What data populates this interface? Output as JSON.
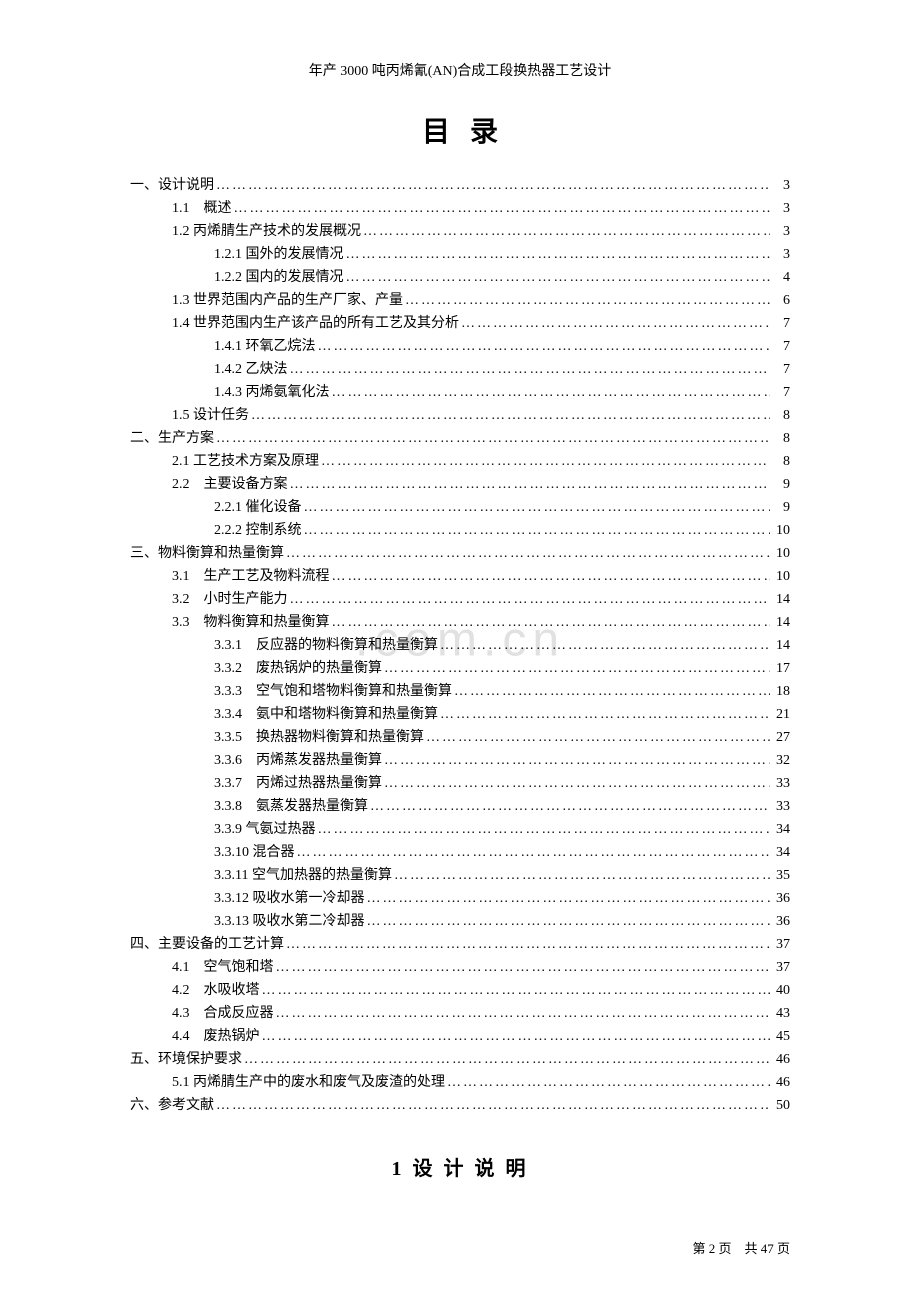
{
  "docHeader": "年产 3000 吨丙烯氰(AN)合成工段换热器工艺设计",
  "mainTitle": "目录",
  "watermark": ".com.cn",
  "sectionTitle": "1 设 计 说 明",
  "footer": {
    "currentPageLabel": "第",
    "currentPage": "2",
    "pageUnit": "页",
    "totalLabel": "共",
    "totalPages": "47",
    "totalUnit": "页"
  },
  "toc": [
    {
      "indent": 0,
      "label": "一、设计说明",
      "page": "3"
    },
    {
      "indent": 1,
      "label": "1.1　概述",
      "page": "3"
    },
    {
      "indent": 1,
      "label": "1.2 丙烯腈生产技术的发展概况",
      "page": "3"
    },
    {
      "indent": 2,
      "label": "1.2.1 国外的发展情况",
      "page": "3"
    },
    {
      "indent": 2,
      "label": "1.2.2 国内的发展情况",
      "page": "4"
    },
    {
      "indent": 1,
      "label": "1.3 世界范围内产品的生产厂家、产量",
      "page": "6"
    },
    {
      "indent": 1,
      "label": "1.4 世界范围内生产该产品的所有工艺及其分析",
      "page": "7"
    },
    {
      "indent": 2,
      "label": "1.4.1 环氧乙烷法",
      "page": "7"
    },
    {
      "indent": 2,
      "label": "1.4.2 乙炔法",
      "page": "7"
    },
    {
      "indent": 2,
      "label": "1.4.3 丙烯氨氧化法",
      "page": "7"
    },
    {
      "indent": 1,
      "label": "1.5 设计任务",
      "page": "8"
    },
    {
      "indent": 0,
      "label": "二、生产方案",
      "page": "8"
    },
    {
      "indent": 1,
      "label": "2.1 工艺技术方案及原理",
      "page": "8"
    },
    {
      "indent": 1,
      "label": "2.2　主要设备方案",
      "page": "9"
    },
    {
      "indent": 2,
      "label": "2.2.1 催化设备",
      "page": "9"
    },
    {
      "indent": 2,
      "label": "2.2.2 控制系统",
      "page": "10"
    },
    {
      "indent": 0,
      "label": "三、物料衡算和热量衡算 ",
      "page": "10"
    },
    {
      "indent": 1,
      "label": "3.1　生产工艺及物料流程",
      "page": "10"
    },
    {
      "indent": 1,
      "label": "3.2　小时生产能力",
      "page": "14"
    },
    {
      "indent": 1,
      "label": "3.3　物料衡算和热量衡算",
      "page": "14"
    },
    {
      "indent": 2,
      "label": "3.3.1　反应器的物料衡算和热量衡算",
      "page": "14"
    },
    {
      "indent": 2,
      "label": "3.3.2　废热锅炉的热量衡算",
      "page": "17"
    },
    {
      "indent": 2,
      "label": "3.3.3　空气饱和塔物料衡算和热量衡算",
      "page": "18"
    },
    {
      "indent": 2,
      "label": "3.3.4　氨中和塔物料衡算和热量衡算",
      "page": "21"
    },
    {
      "indent": 2,
      "label": "3.3.5　换热器物料衡算和热量衡算",
      "page": "27"
    },
    {
      "indent": 2,
      "label": "3.3.6　丙烯蒸发器热量衡算",
      "page": "32"
    },
    {
      "indent": 2,
      "label": "3.3.7　丙烯过热器热量衡算",
      "page": "33"
    },
    {
      "indent": 2,
      "label": "3.3.8　氨蒸发器热量衡算",
      "page": "33"
    },
    {
      "indent": 2,
      "label": "3.3.9 气氨过热器",
      "page": "34"
    },
    {
      "indent": 2,
      "label": "3.3.10 混合器",
      "page": "34"
    },
    {
      "indent": 2,
      "label": "3.3.11 空气加热器的热量衡算",
      "page": "35"
    },
    {
      "indent": 2,
      "label": "3.3.12 吸收水第一冷却器",
      "page": "36"
    },
    {
      "indent": 2,
      "label": "3.3.13 吸收水第二冷却器",
      "page": "36"
    },
    {
      "indent": 0,
      "label": "四、主要设备的工艺计算",
      "page": "37"
    },
    {
      "indent": 1,
      "label": "4.1　空气饱和塔",
      "page": "37"
    },
    {
      "indent": 1,
      "label": "4.2　水吸收塔",
      "page": "40"
    },
    {
      "indent": 1,
      "label": "4.3　合成反应器",
      "page": "43"
    },
    {
      "indent": 1,
      "label": "4.4　废热锅炉",
      "page": "45"
    },
    {
      "indent": 0,
      "label": "五、环境保护要求",
      "page": "46"
    },
    {
      "indent": 1,
      "label": "5.1 丙烯腈生产中的废水和废气及废渣的处理",
      "page": "46"
    },
    {
      "indent": 0,
      "label": "六、参考文献",
      "page": "50"
    }
  ]
}
